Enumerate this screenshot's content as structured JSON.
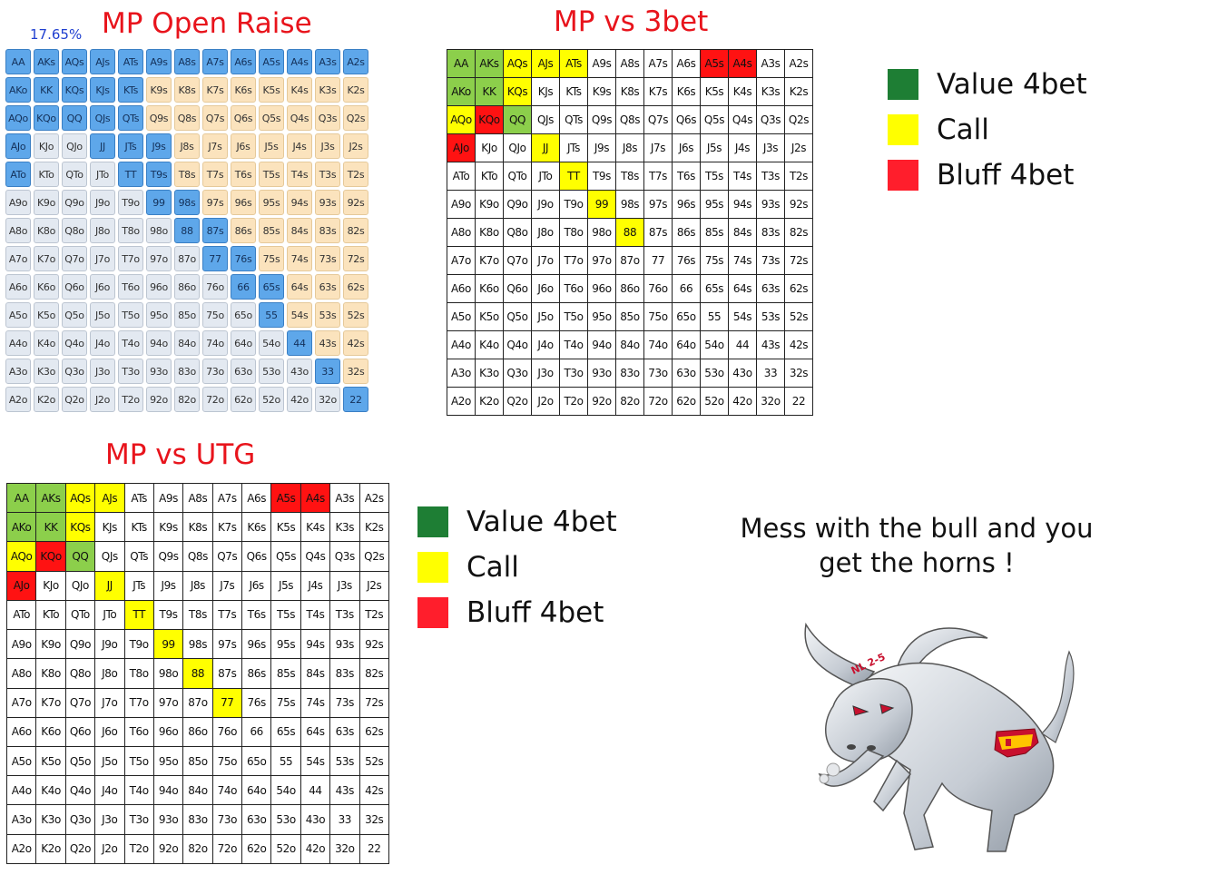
{
  "open_raise": {
    "title": "MP Open Raise",
    "percentage": "17.65%",
    "cells": [
      [
        "AA",
        "AKs",
        "AQs",
        "AJs",
        "ATs",
        "A9s",
        "A8s",
        "A7s",
        "A6s",
        "A5s",
        "A4s",
        "A3s",
        "A2s"
      ],
      [
        "AKo",
        "KK",
        "KQs",
        "KJs",
        "KTs",
        "K9s",
        "K8s",
        "K7s",
        "K6s",
        "K5s",
        "K4s",
        "K3s",
        "K2s"
      ],
      [
        "AQo",
        "KQo",
        "QQ",
        "QJs",
        "QTs",
        "Q9s",
        "Q8s",
        "Q7s",
        "Q6s",
        "Q5s",
        "Q4s",
        "Q3s",
        "Q2s"
      ],
      [
        "AJo",
        "KJo",
        "QJo",
        "JJ",
        "JTs",
        "J9s",
        "J8s",
        "J7s",
        "J6s",
        "J5s",
        "J4s",
        "J3s",
        "J2s"
      ],
      [
        "ATo",
        "KTo",
        "QTo",
        "JTo",
        "TT",
        "T9s",
        "T8s",
        "T7s",
        "T6s",
        "T5s",
        "T4s",
        "T3s",
        "T2s"
      ],
      [
        "A9o",
        "K9o",
        "Q9o",
        "J9o",
        "T9o",
        "99",
        "98s",
        "97s",
        "96s",
        "95s",
        "94s",
        "93s",
        "92s"
      ],
      [
        "A8o",
        "K8o",
        "Q8o",
        "J8o",
        "T8o",
        "98o",
        "88",
        "87s",
        "86s",
        "85s",
        "84s",
        "83s",
        "82s"
      ],
      [
        "A7o",
        "K7o",
        "Q7o",
        "J7o",
        "T7o",
        "97o",
        "87o",
        "77",
        "76s",
        "75s",
        "74s",
        "73s",
        "72s"
      ],
      [
        "A6o",
        "K6o",
        "Q6o",
        "J6o",
        "T6o",
        "96o",
        "86o",
        "76o",
        "66",
        "65s",
        "64s",
        "63s",
        "62s"
      ],
      [
        "A5o",
        "K5o",
        "Q5o",
        "J5o",
        "T5o",
        "95o",
        "85o",
        "75o",
        "65o",
        "55",
        "54s",
        "53s",
        "52s"
      ],
      [
        "A4o",
        "K4o",
        "Q4o",
        "J4o",
        "T4o",
        "94o",
        "84o",
        "74o",
        "64o",
        "54o",
        "44",
        "43s",
        "42s"
      ],
      [
        "A3o",
        "K3o",
        "Q3o",
        "J3o",
        "T3o",
        "93o",
        "83o",
        "73o",
        "63o",
        "53o",
        "43o",
        "33",
        "32s"
      ],
      [
        "A2o",
        "K2o",
        "Q2o",
        "J2o",
        "T2o",
        "92o",
        "82o",
        "72o",
        "62o",
        "52o",
        "42o",
        "32o",
        "22"
      ]
    ],
    "raise_hands": [
      "AA",
      "AKs",
      "AQs",
      "AJs",
      "ATs",
      "A9s",
      "A8s",
      "A7s",
      "A6s",
      "A5s",
      "A4s",
      "A3s",
      "A2s",
      "AKo",
      "KK",
      "KQs",
      "KJs",
      "KTs",
      "AQo",
      "KQo",
      "QQ",
      "QJs",
      "QTs",
      "AJo",
      "JJ",
      "JTs",
      "J9s",
      "ATo",
      "TT",
      "T9s",
      "99",
      "98s",
      "88",
      "87s",
      "77",
      "76s",
      "66",
      "65s",
      "55",
      "44",
      "33",
      "22"
    ]
  },
  "vs_3bet": {
    "title": "MP vs 3bet",
    "value": [
      "AA",
      "AKs",
      "AKo",
      "KK",
      "QQ"
    ],
    "call": [
      "AQs",
      "AJs",
      "ATs",
      "KQs",
      "AQo",
      "JJ",
      "TT",
      "99",
      "88"
    ],
    "bluff": [
      "A5s",
      "A4s",
      "KQo",
      "AJo"
    ]
  },
  "vs_utg": {
    "title": "MP vs UTG",
    "value": [
      "AA",
      "AKs",
      "AKo",
      "KK",
      "QQ"
    ],
    "call": [
      "AQs",
      "AJs",
      "KQs",
      "AQo",
      "JJ",
      "TT",
      "99",
      "88",
      "77"
    ],
    "bluff": [
      "A5s",
      "A4s",
      "KQo",
      "AJo"
    ]
  },
  "legend": [
    {
      "label": "Value 4bet",
      "color": "#1e7e34"
    },
    {
      "label": "Call",
      "color": "#ffff00"
    },
    {
      "label": "Bluff 4bet",
      "color": "#ff1e2c"
    }
  ],
  "motto": {
    "line1": "Mess with the bull and you",
    "line2": "get the horns !"
  },
  "bull_image": {
    "text": "NL 2-5"
  },
  "colors": {
    "title": "#e8141c",
    "raise": "#5ea7ea",
    "value_cell": "#8ccf4b",
    "call_cell": "#ffff00",
    "bluff_cell": "#ff1212"
  }
}
